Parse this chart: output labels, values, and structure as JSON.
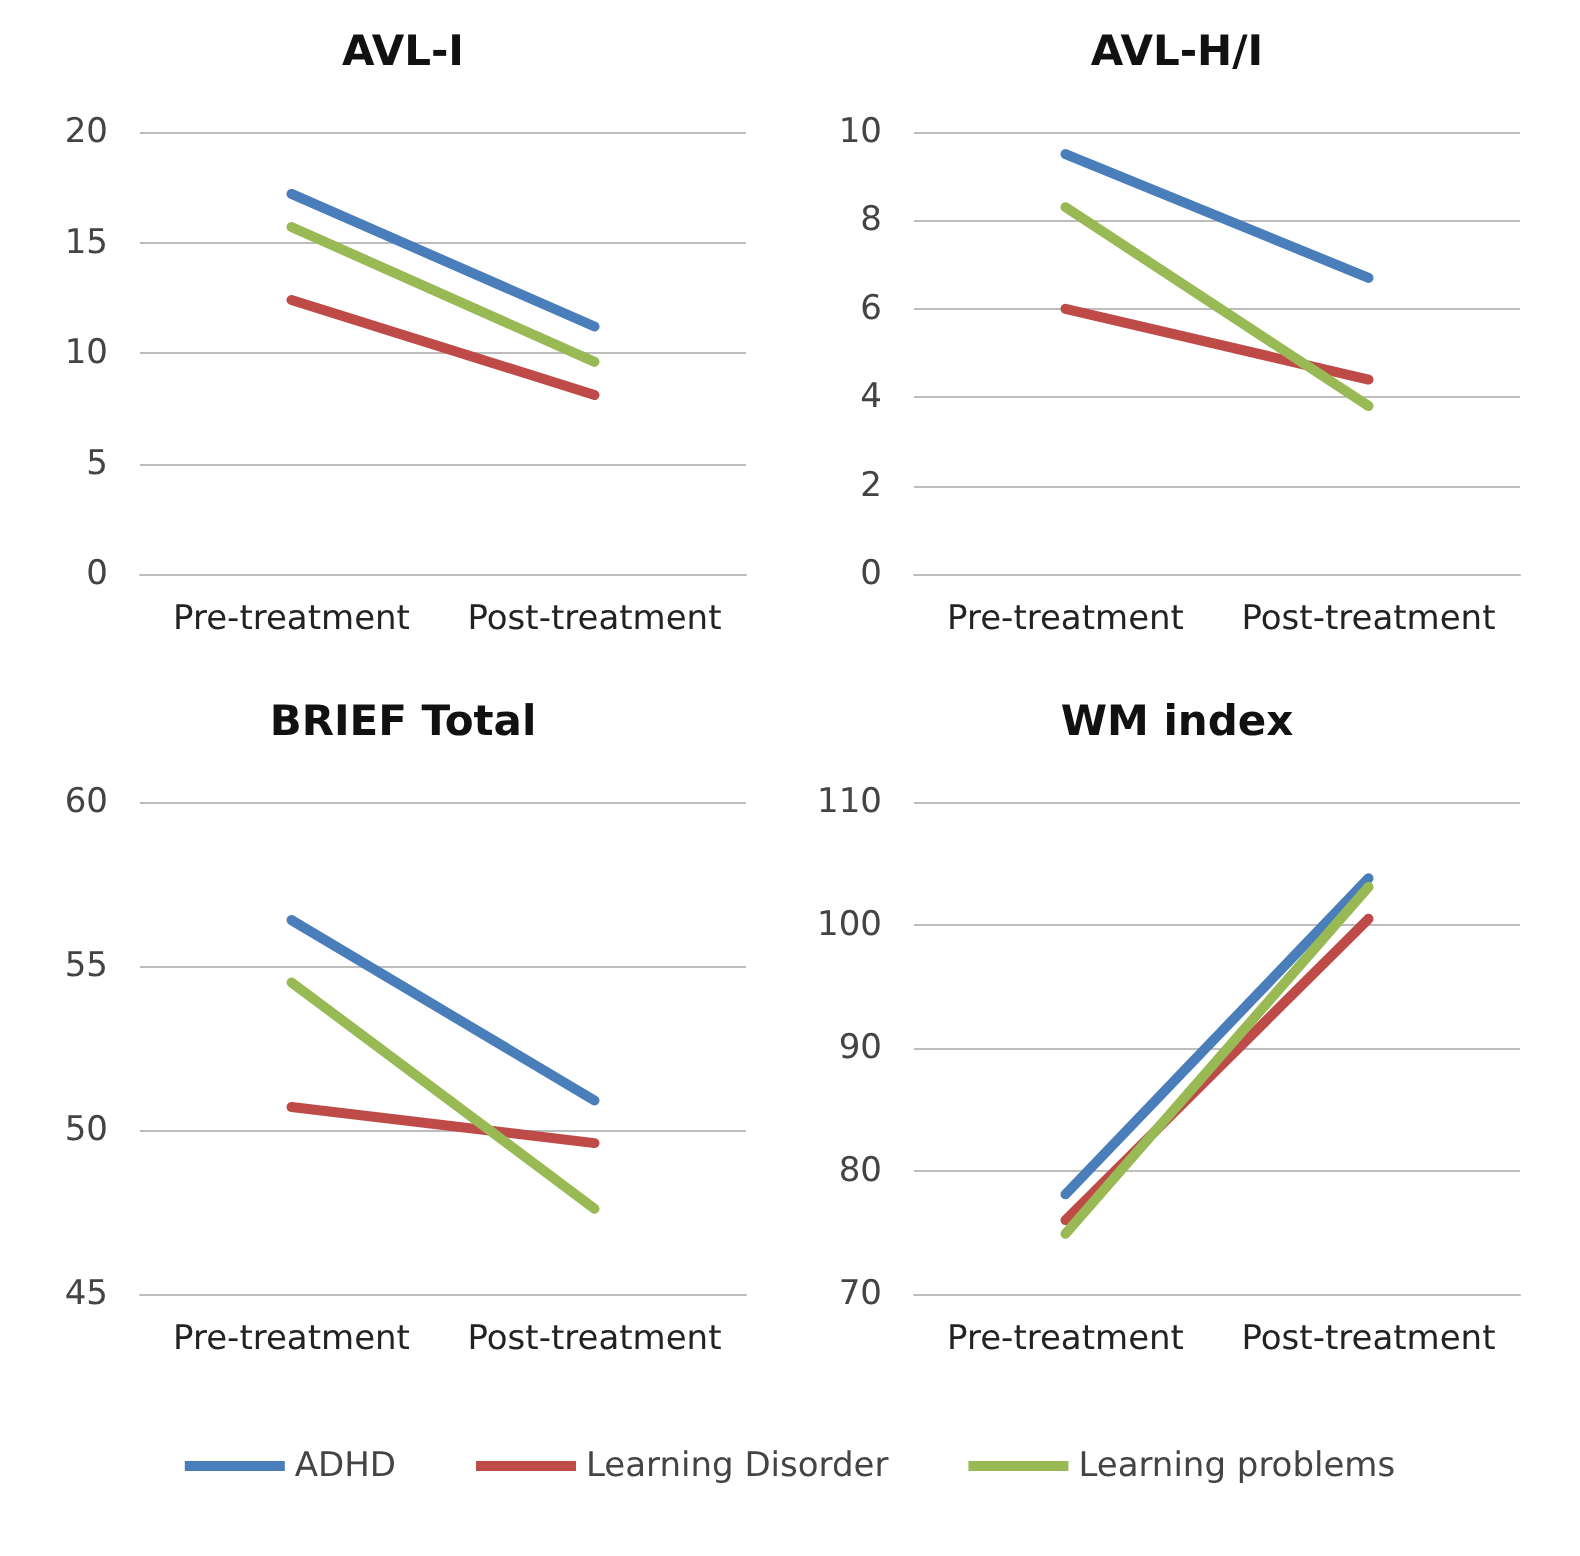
{
  "chart_data": [
    {
      "type": "line",
      "title": "AVL-I",
      "categories": [
        "Pre-treatment",
        "Post-treatment"
      ],
      "ylim": [
        0,
        20
      ],
      "yticks": [
        0,
        5,
        10,
        15,
        20
      ],
      "grid": "y",
      "marker": "none",
      "legend": "bottom",
      "series": [
        {
          "name": "ADHD",
          "color": "#4a7ebb",
          "values": [
            17.2,
            11.2
          ]
        },
        {
          "name": "Learning Disorder",
          "color": "#be4b48",
          "values": [
            12.4,
            8.1
          ]
        },
        {
          "name": "Learning problems",
          "color": "#98b954",
          "values": [
            15.7,
            9.6
          ]
        }
      ]
    },
    {
      "type": "line",
      "title": "AVL-H/I",
      "categories": [
        "Pre-treatment",
        "Post-treatment"
      ],
      "ylim": [
        0,
        10
      ],
      "yticks": [
        0,
        2,
        4,
        6,
        8,
        10
      ],
      "grid": "y",
      "marker": "none",
      "series": [
        {
          "color": "#4a7ebb",
          "values": [
            9.5,
            6.7
          ]
        },
        {
          "color": "#be4b48",
          "values": [
            6.0,
            4.4
          ]
        },
        {
          "color": "#98b954",
          "values": [
            8.3,
            3.8
          ]
        }
      ]
    },
    {
      "type": "line",
      "title": "BRIEF Total",
      "categories": [
        "Pre-treatment",
        "Post-treatment"
      ],
      "ylim": [
        45,
        60
      ],
      "yticks": [
        45,
        50,
        55,
        60
      ],
      "grid": "y",
      "marker": "none",
      "series": [
        {
          "color": "#4a7ebb",
          "values": [
            56.4,
            50.9
          ]
        },
        {
          "color": "#be4b48",
          "values": [
            50.7,
            49.6
          ]
        },
        {
          "color": "#98b954",
          "values": [
            54.5,
            47.6
          ]
        }
      ]
    },
    {
      "type": "line",
      "title": "WM index",
      "categories": [
        "Pre-treatment",
        "Post-treatment"
      ],
      "ylim": [
        70,
        110
      ],
      "yticks": [
        70,
        80,
        90,
        100,
        110
      ],
      "grid": "y",
      "marker": "none",
      "series": [
        {
          "color": "#4a7ebb",
          "values": [
            78.1,
            103.8
          ]
        },
        {
          "color": "#be4b48",
          "values": [
            76.0,
            100.5
          ]
        },
        {
          "color": "#98b954",
          "values": [
            74.9,
            103.1
          ]
        }
      ]
    }
  ]
}
